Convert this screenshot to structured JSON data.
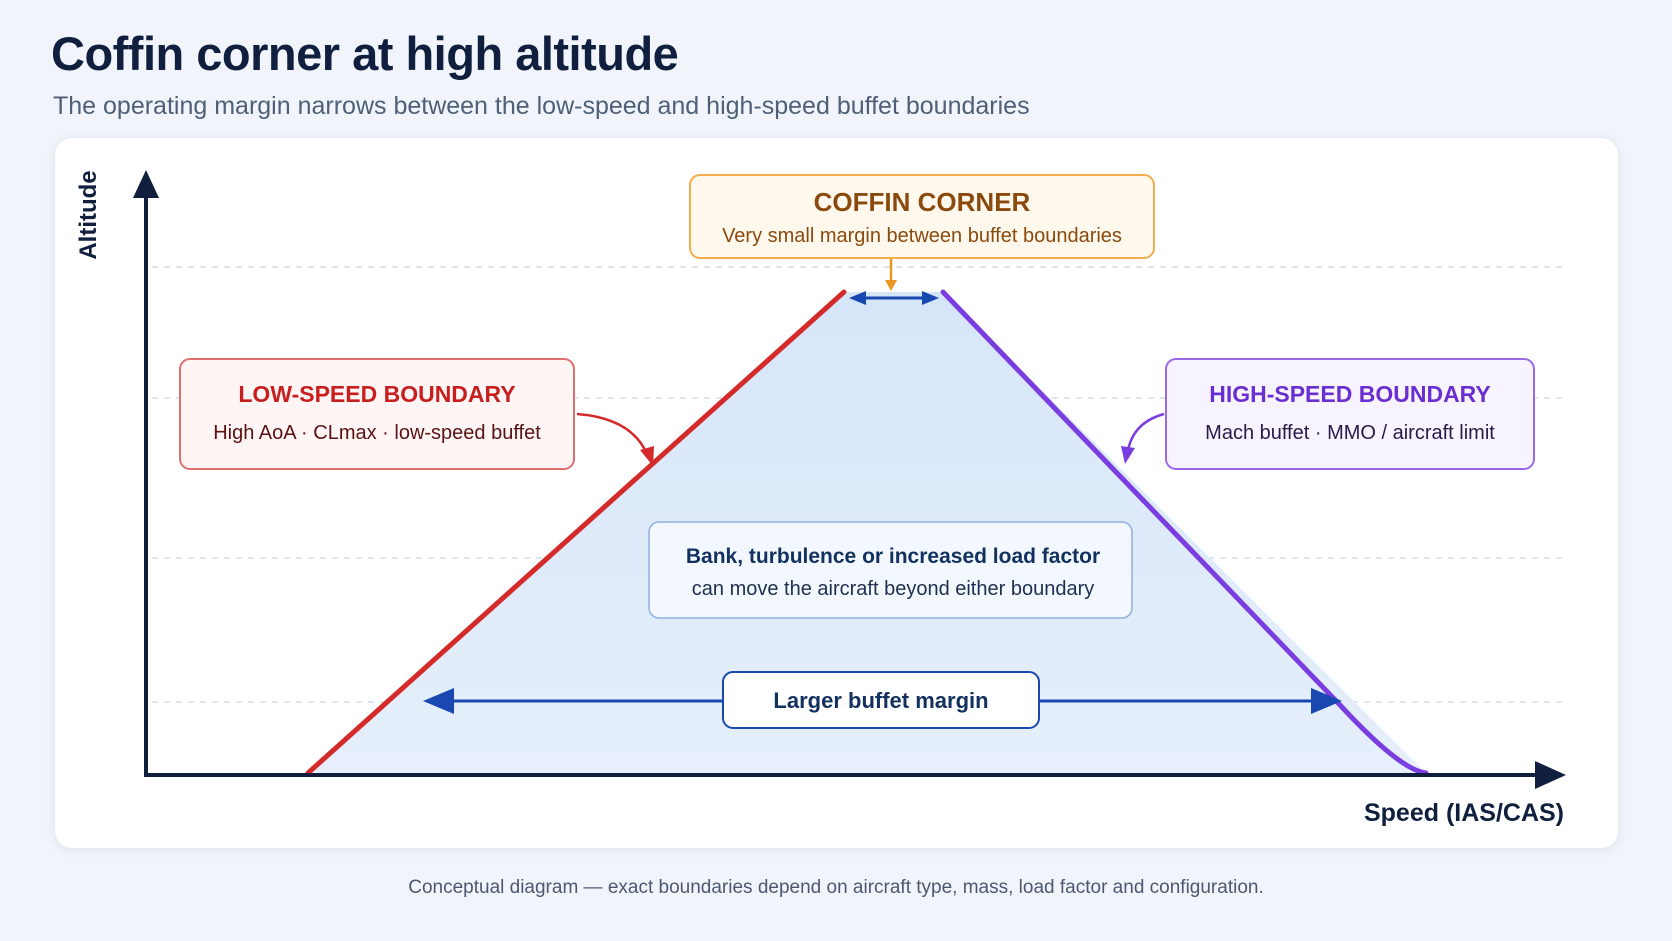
{
  "header": {
    "title": "Coffin corner at high altitude",
    "subtitle": "The operating margin narrows between the low-speed and high-speed buffet boundaries"
  },
  "axes": {
    "y_label": "Altitude",
    "x_label": "Speed (IAS/CAS)"
  },
  "callouts": {
    "coffin_corner": {
      "title": "COFFIN CORNER",
      "subtitle": "Very small margin between buffet boundaries"
    },
    "low_speed": {
      "title": "LOW-SPEED BOUNDARY",
      "subtitle": "High AoA · CLmax · low-speed buffet"
    },
    "high_speed": {
      "title": "HIGH-SPEED BOUNDARY",
      "subtitle": "Mach buffet · MMO / aircraft limit"
    },
    "load_factor": {
      "title": "Bank, turbulence or increased load factor",
      "subtitle": "can move the aircraft beyond either boundary"
    },
    "margin": {
      "label": "Larger buffet margin"
    }
  },
  "footnote": "Conceptual diagram — exact boundaries depend on aircraft type, mass, load factor and configuration.",
  "colors": {
    "low_speed": "#d42a2a",
    "high_speed": "#7a3ee0",
    "coffin_corner": "#e8961e",
    "navy": "#12315f",
    "arrow_blue": "#1848b0",
    "envelope_fill": "#e1ecfa"
  }
}
